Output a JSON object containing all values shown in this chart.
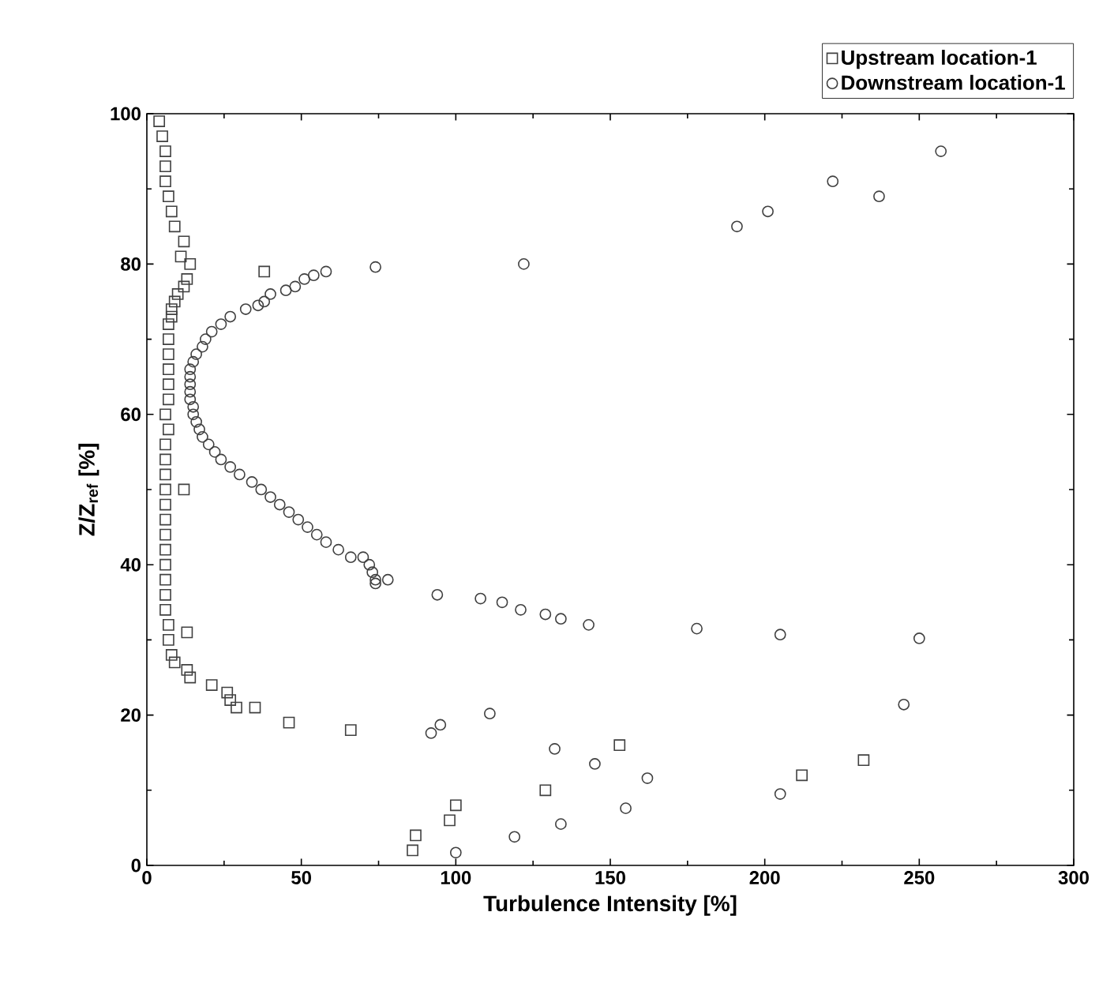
{
  "chart_data": {
    "type": "scatter",
    "xlabel": "Turbulence Intensity [%]",
    "ylabel": "Z/Z$_{ref}$ [%]",
    "xlim": [
      0,
      300
    ],
    "ylim": [
      0,
      100
    ],
    "xticks": [
      0,
      50,
      100,
      150,
      200,
      250,
      300
    ],
    "yticks": [
      0,
      20,
      40,
      60,
      80,
      100
    ],
    "grid": false,
    "legend": "top right",
    "series": [
      {
        "name": "Upstream location-1",
        "color": "#404040",
        "marker": "square",
        "x": [
          4,
          5,
          6,
          6,
          6,
          7,
          8,
          9,
          12,
          11,
          14,
          13,
          12,
          10,
          9,
          8,
          8,
          7,
          7,
          7,
          7,
          7,
          7,
          6,
          7,
          6,
          6,
          6,
          6,
          12,
          6,
          6,
          6,
          6,
          6,
          6,
          6,
          6,
          7,
          13,
          7,
          8,
          9,
          13,
          14,
          21,
          26,
          27,
          29,
          35,
          46,
          66,
          38,
          87,
          100,
          98,
          86,
          129,
          153,
          212,
          232
        ],
        "values": [
          99,
          97,
          95,
          93,
          91,
          89,
          87,
          85,
          83,
          81,
          80,
          78,
          77,
          76,
          75,
          74,
          73,
          72,
          70,
          68,
          66,
          64,
          62,
          60,
          58,
          56,
          54,
          52,
          50,
          50,
          48,
          46,
          44,
          42,
          40,
          38,
          36,
          34,
          32,
          31,
          30,
          28,
          27,
          26,
          25,
          24,
          23,
          22,
          21,
          21,
          19,
          18,
          79,
          4,
          8,
          6,
          2,
          10,
          16,
          12,
          14
        ]
      },
      {
        "name": "Downstream location-1",
        "color": "#404040",
        "marker": "circle",
        "x": [
          58,
          54,
          51,
          48,
          45,
          40,
          38,
          36,
          32,
          27,
          24,
          21,
          19,
          18,
          16,
          15,
          14,
          14,
          14,
          14,
          14,
          15,
          15,
          16,
          17,
          18,
          20,
          22,
          24,
          27,
          30,
          34,
          37,
          40,
          43,
          46,
          49,
          52,
          55,
          58,
          62,
          66,
          70,
          72,
          73,
          74,
          74,
          78,
          94,
          108,
          115,
          121,
          129,
          134,
          143,
          178,
          205,
          250,
          245,
          111,
          95,
          92,
          132,
          145,
          162,
          205,
          155,
          134,
          119,
          100,
          257,
          222,
          237,
          201,
          191,
          122,
          74
        ],
        "values": [
          79,
          78.5,
          78,
          77,
          76.5,
          76,
          75,
          74.5,
          74,
          73,
          72,
          71,
          70,
          69,
          68,
          67,
          66,
          65,
          64,
          63,
          62,
          61,
          60,
          59,
          58,
          57,
          56,
          55,
          54,
          53,
          52,
          51,
          50,
          49,
          48,
          47,
          46,
          45,
          44,
          43,
          42,
          41,
          41,
          40,
          39,
          38,
          37.5,
          38,
          36,
          35.5,
          35,
          34,
          33.4,
          32.8,
          32,
          31.5,
          30.7,
          30.2,
          21.4,
          20.2,
          18.7,
          17.6,
          15.5,
          13.5,
          11.6,
          9.5,
          7.6,
          5.5,
          3.8,
          1.7,
          95,
          91,
          89,
          87,
          85,
          80,
          79.6
        ]
      }
    ]
  }
}
